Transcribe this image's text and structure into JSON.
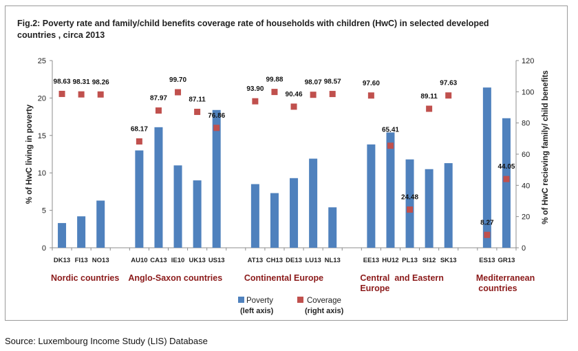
{
  "title": "Fig.2: Poverty rate and family/child benefits  coverage rate of households with children (HwC) in selected developed countries , circa 2013",
  "source": "Source: Luxembourg Income Study (LIS) Database",
  "colors": {
    "poverty": "#4f81bd",
    "coverage": "#c0504d",
    "group_label": "#8b1a1a"
  },
  "chart_data": {
    "type": "bar",
    "categories": [
      "DK13",
      "FI13",
      "NO13",
      "",
      "AU10",
      "CA13",
      "IE10",
      "UK13",
      "US13",
      "",
      "AT13",
      "CH13",
      "DE13",
      "LU13",
      "NL13",
      "",
      "EE13",
      "HU12",
      "PL13",
      "SI12",
      "SK13",
      "",
      "ES13",
      "GR13"
    ],
    "series": [
      {
        "name": "Poverty",
        "sub": "(left axis)",
        "type": "bar",
        "axis": "left",
        "values": [
          3.3,
          4.2,
          6.3,
          null,
          13.0,
          16.1,
          11.0,
          9.0,
          18.4,
          null,
          8.5,
          7.3,
          9.3,
          11.9,
          5.4,
          null,
          13.8,
          15.4,
          11.8,
          10.5,
          11.3,
          null,
          21.4,
          17.3
        ]
      },
      {
        "name": "Coverage",
        "sub": "(right axis)",
        "type": "marker",
        "axis": "right",
        "values": [
          98.63,
          98.31,
          98.26,
          null,
          68.17,
          87.97,
          99.7,
          87.11,
          76.86,
          null,
          93.9,
          99.88,
          90.46,
          98.07,
          98.57,
          null,
          97.6,
          65.41,
          24.48,
          89.11,
          97.63,
          null,
          8.27,
          44.05
        ],
        "labels": [
          "98.63",
          "98.31",
          "98.26",
          "",
          "68.17",
          "87.97",
          "99.70",
          "87.11",
          "76.86",
          "",
          "93.90",
          "99.88",
          "90.46",
          "98.07",
          "98.57",
          "",
          "97.60",
          "65.41",
          "24.48",
          "89.11",
          "97.63",
          "",
          "8.27",
          "44.05"
        ]
      }
    ],
    "y_left": {
      "label": "% of HwC living in poverty",
      "lim": [
        0,
        25
      ],
      "ticks": [
        0,
        5,
        10,
        15,
        20,
        25
      ]
    },
    "y_right": {
      "label": "% of HwC recieving family/ child benefits",
      "lim": [
        0,
        120
      ],
      "ticks": [
        0,
        20,
        40,
        60,
        80,
        100,
        120
      ]
    },
    "groups": [
      {
        "label_lines": [
          "Nordic countries"
        ],
        "start": 0
      },
      {
        "label_lines": [
          "Anglo-Saxon countries"
        ],
        "start": 4
      },
      {
        "label_lines": [
          "Continental Europe"
        ],
        "start": 10
      },
      {
        "label_lines": [
          "Central  and Eastern",
          "Europe"
        ],
        "start": 16
      },
      {
        "label_lines": [
          "Mediterranean",
          " countries"
        ],
        "start": 22
      }
    ],
    "legend_position": "bottom",
    "grid": false
  }
}
